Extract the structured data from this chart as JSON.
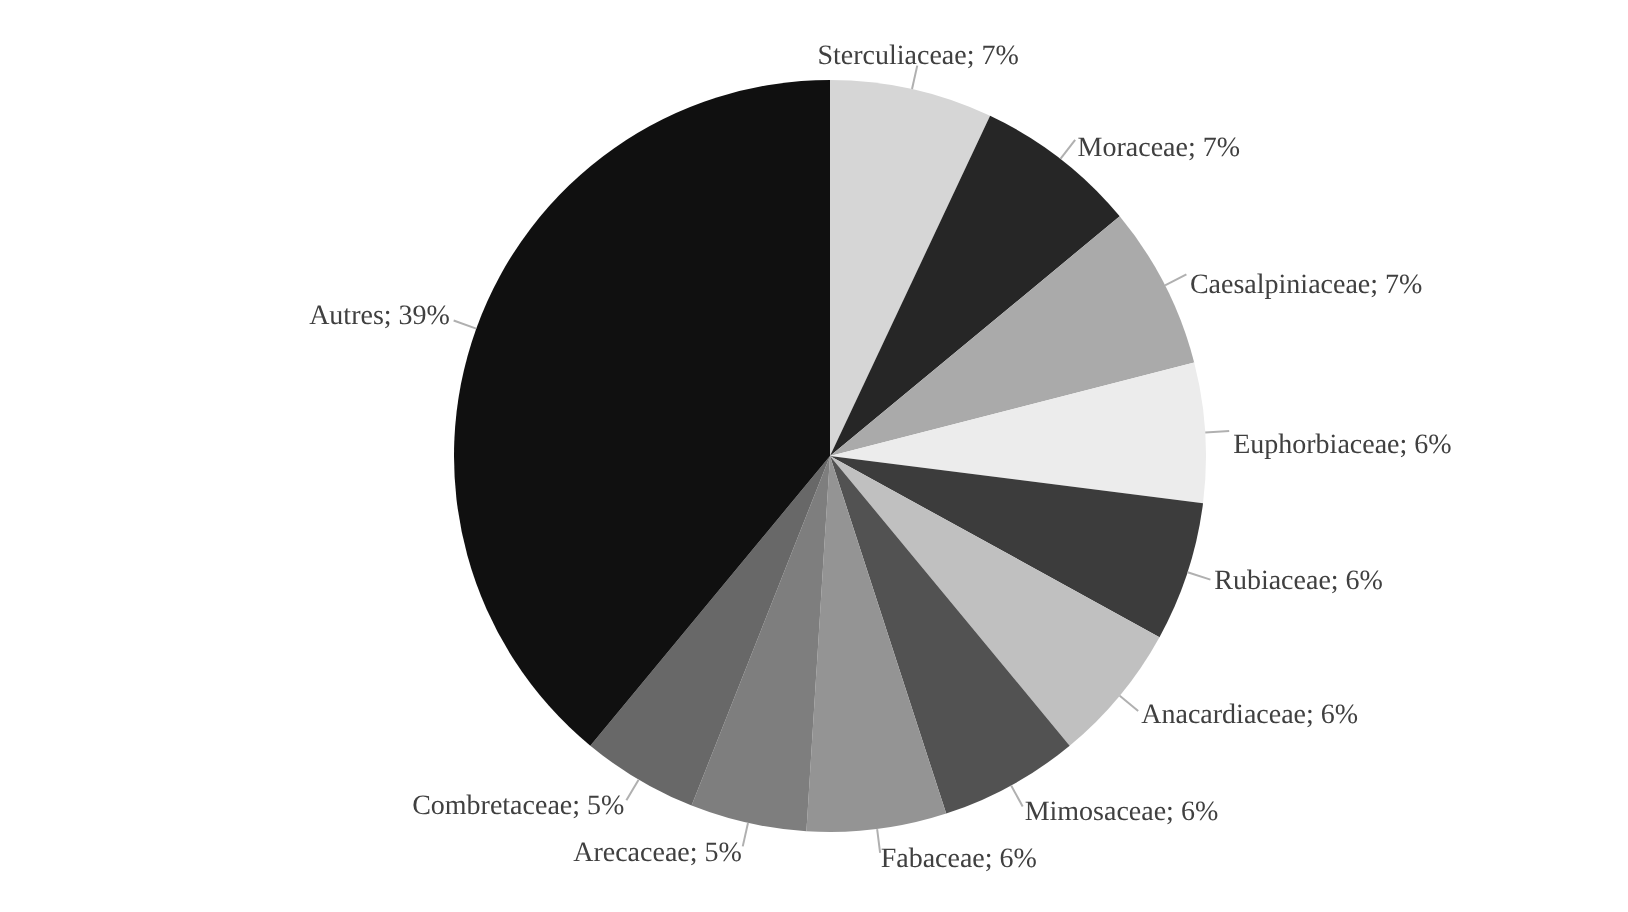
{
  "chart_data": {
    "type": "pie",
    "categories": [
      "Sterculiaceae",
      "Moraceae",
      "Caesalpiniaceae",
      "Euphorbiaceae",
      "Rubiaceae",
      "Anacardiaceae",
      "Mimosaceae",
      "Fabaceae",
      "Arecaceae",
      "Combretaceae",
      "Autres"
    ],
    "values": [
      7,
      7,
      7,
      6,
      6,
      6,
      6,
      6,
      5,
      5,
      39
    ],
    "colors": [
      "#d6d6d6",
      "#262626",
      "#aaaaaa",
      "#ececec",
      "#3c3c3c",
      "#c0c0c0",
      "#525252",
      "#949494",
      "#7e7e7e",
      "#686868",
      "#101010"
    ],
    "value_labels": [
      "; 7%",
      "; 7%",
      "; 7%",
      "; 6%",
      "; 6%",
      "; 6%",
      "; 6%",
      "; 6%",
      "; 5%",
      "; 5%",
      "; 39%"
    ]
  }
}
